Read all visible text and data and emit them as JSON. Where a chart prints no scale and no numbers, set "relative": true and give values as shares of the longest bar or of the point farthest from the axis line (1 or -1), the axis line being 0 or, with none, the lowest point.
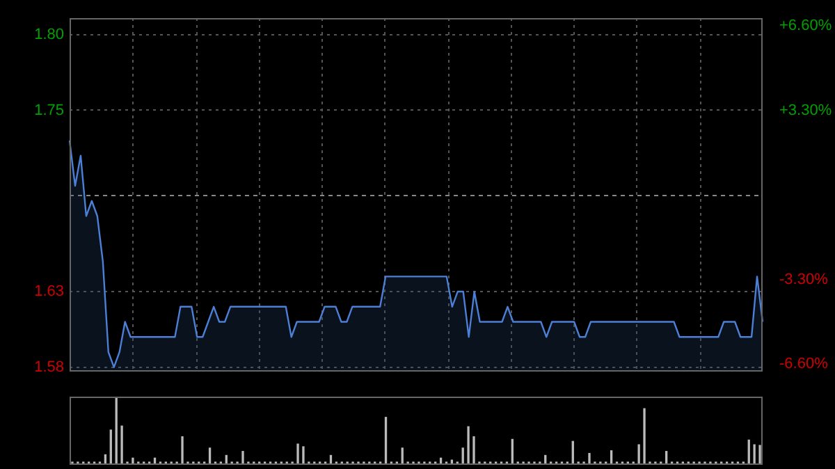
{
  "chart_data": [
    {
      "type": "area",
      "color": "#4c7fd6",
      "categories": [
        null,
        null,
        null,
        null,
        null,
        null,
        null,
        null,
        null,
        null,
        null,
        null,
        null,
        null,
        null,
        null,
        null,
        null,
        null,
        null,
        null,
        null,
        null,
        null,
        null,
        null,
        null,
        null,
        null,
        null,
        null,
        null,
        null,
        null,
        null,
        null,
        null,
        null,
        null,
        null,
        null,
        null,
        null,
        null,
        null,
        null,
        null,
        null,
        null,
        null,
        null,
        null,
        null,
        null,
        null,
        null,
        null,
        null,
        null,
        null,
        null,
        null,
        null,
        null,
        null,
        null,
        null,
        null,
        null,
        null,
        null,
        null,
        null,
        null,
        null,
        null,
        null,
        null,
        null,
        null,
        null,
        null,
        null,
        null,
        null,
        null,
        null,
        null,
        null,
        null,
        null,
        null,
        null,
        null,
        null,
        null,
        null,
        null,
        null,
        null,
        null,
        null,
        null,
        null,
        null,
        null,
        null,
        null,
        null,
        null,
        null,
        null,
        null,
        null,
        null,
        null,
        null,
        null,
        null,
        null,
        null,
        null,
        null,
        null,
        null,
        null
      ],
      "values": [
        1.73,
        1.7,
        1.72,
        1.68,
        1.69,
        1.68,
        1.65,
        1.59,
        1.58,
        1.59,
        1.61,
        1.6,
        1.6,
        1.6,
        1.6,
        1.6,
        1.6,
        1.6,
        1.6,
        1.6,
        1.62,
        1.62,
        1.62,
        1.6,
        1.6,
        1.61,
        1.62,
        1.61,
        1.61,
        1.62,
        1.62,
        1.62,
        1.62,
        1.62,
        1.62,
        1.62,
        1.62,
        1.62,
        1.62,
        1.62,
        1.6,
        1.61,
        1.61,
        1.61,
        1.61,
        1.61,
        1.62,
        1.62,
        1.62,
        1.61,
        1.61,
        1.62,
        1.62,
        1.62,
        1.62,
        1.62,
        1.62,
        1.64,
        1.64,
        1.64,
        1.64,
        1.64,
        1.64,
        1.64,
        1.64,
        1.64,
        1.64,
        1.64,
        1.64,
        1.62,
        1.63,
        1.63,
        1.6,
        1.63,
        1.61,
        1.61,
        1.61,
        1.61,
        1.61,
        1.62,
        1.61,
        1.61,
        1.61,
        1.61,
        1.61,
        1.61,
        1.6,
        1.61,
        1.61,
        1.61,
        1.61,
        1.61,
        1.6,
        1.6,
        1.61,
        1.61,
        1.61,
        1.61,
        1.61,
        1.61,
        1.61,
        1.61,
        1.61,
        1.61,
        1.61,
        1.61,
        1.61,
        1.61,
        1.61,
        1.61,
        1.6,
        1.6,
        1.6,
        1.6,
        1.6,
        1.6,
        1.6,
        1.6,
        1.61,
        1.61,
        1.61,
        1.6,
        1.6,
        1.6,
        1.64,
        1.61
      ],
      "ylim": [
        1.578,
        1.811
      ],
      "yticks": [
        {
          "value": 1.8,
          "label": "1.80"
        },
        {
          "value": 1.75,
          "label": "1.75"
        },
        {
          "value": 1.63,
          "label": "1.63"
        },
        {
          "value": 1.58,
          "label": "1.58"
        }
      ],
      "y2lim": [
        -6.85,
        6.91
      ],
      "y2ticks": [
        {
          "value": 6.6,
          "label": "+6.60%"
        },
        {
          "value": 3.3,
          "label": "+3.30%"
        },
        {
          "value": -3.3,
          "label": "-3.30%"
        },
        {
          "value": -6.6,
          "label": "-6.60%"
        }
      ],
      "ref_lines": [
        {
          "axis": "y",
          "value": 1.694,
          "line_style": "dashed"
        }
      ],
      "grid": true,
      "legend": false,
      "tick_labels": "y"
    },
    {
      "type": "bar",
      "relative": true,
      "color": "#bbbbbb",
      "categories": [
        null,
        null,
        null,
        null,
        null,
        null,
        null,
        null,
        null,
        null,
        null,
        null,
        null,
        null,
        null,
        null,
        null,
        null,
        null,
        null,
        null,
        null,
        null,
        null,
        null,
        null,
        null,
        null,
        null,
        null,
        null,
        null,
        null,
        null,
        null,
        null,
        null,
        null,
        null,
        null,
        null,
        null,
        null,
        null,
        null,
        null,
        null,
        null,
        null,
        null,
        null,
        null,
        null,
        null,
        null,
        null,
        null,
        null,
        null,
        null,
        null,
        null,
        null,
        null,
        null,
        null,
        null,
        null,
        null,
        null,
        null,
        null,
        null,
        null,
        null,
        null,
        null,
        null,
        null,
        null,
        null,
        null,
        null,
        null,
        null,
        null,
        null,
        null,
        null,
        null,
        null,
        null,
        null,
        null,
        null,
        null,
        null,
        null,
        null,
        null,
        null,
        null,
        null,
        null,
        null,
        null,
        null,
        null,
        null,
        null,
        null,
        null,
        null,
        null,
        null,
        null,
        null,
        null,
        null,
        null,
        null,
        null,
        null,
        null,
        null,
        null
      ],
      "values": [
        0.02,
        0.02,
        0.02,
        0.02,
        0.02,
        0.02,
        0.13,
        0.5,
        1,
        0.56,
        0.02,
        0.08,
        0.02,
        0.02,
        0.02,
        0.08,
        0.02,
        0.02,
        0.02,
        0.02,
        0.4,
        0.02,
        0.02,
        0.02,
        0.02,
        0.23,
        0.02,
        0.02,
        0.12,
        0.02,
        0.02,
        0.18,
        0.02,
        0.02,
        0.02,
        0.02,
        0.02,
        0.02,
        0.02,
        0.02,
        0.02,
        0.29,
        0.25,
        0.02,
        0.02,
        0.02,
        0.02,
        0.12,
        0.02,
        0.02,
        0.02,
        0.02,
        0.02,
        0.02,
        0.02,
        0.02,
        0.02,
        0.69,
        0.02,
        0.02,
        0.23,
        0.02,
        0.02,
        0.02,
        0.02,
        0.02,
        0.02,
        0.08,
        0.02,
        0.05,
        0.02,
        0.23,
        0.55,
        0.4,
        0.02,
        0.02,
        0.02,
        0.02,
        0.02,
        0.02,
        0.36,
        0.02,
        0.02,
        0.02,
        0.02,
        0.02,
        0.12,
        0.02,
        0.02,
        0.02,
        0.02,
        0.33,
        0.02,
        0.02,
        0.15,
        0.02,
        0.02,
        0.02,
        0.19,
        0.02,
        0.02,
        0.02,
        0.02,
        0.28,
        0.82,
        0.02,
        0.02,
        0.02,
        0.18,
        0.02,
        0.02,
        0.02,
        0.02,
        0.02,
        0.02,
        0.02,
        0.02,
        0.02,
        0.02,
        0.02,
        0.02,
        0.02,
        0.02,
        0.35,
        0.28,
        0.27
      ],
      "legend": false,
      "tick_labels": false
    }
  ]
}
